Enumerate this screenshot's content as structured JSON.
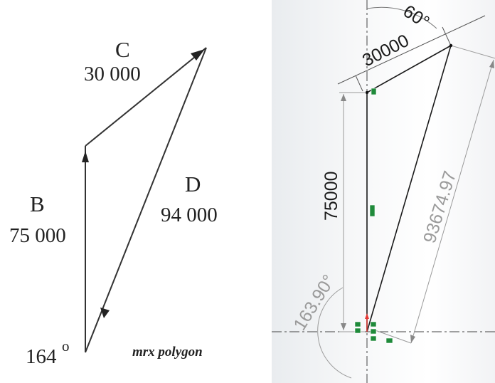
{
  "left_diagram": {
    "vectors": [
      {
        "letter": "B",
        "magnitude": "75 000"
      },
      {
        "letter": "C",
        "magnitude": "30 000"
      },
      {
        "letter": "D",
        "magnitude": "94 000"
      }
    ],
    "angle_label": "164",
    "angle_degree_mark": "o",
    "caption": "mrx polygon"
  },
  "right_sketch": {
    "dim_top": "30000",
    "dim_angle": "60°",
    "dim_vertical": "75000",
    "dim_diagonal": "93674.97",
    "dim_bottom_angle": "163.90°",
    "colors": {
      "line": "#1a1a1a",
      "dimension": "#9a9a9a",
      "constraint": "#1f8a3a",
      "origin": "#e53935"
    }
  }
}
